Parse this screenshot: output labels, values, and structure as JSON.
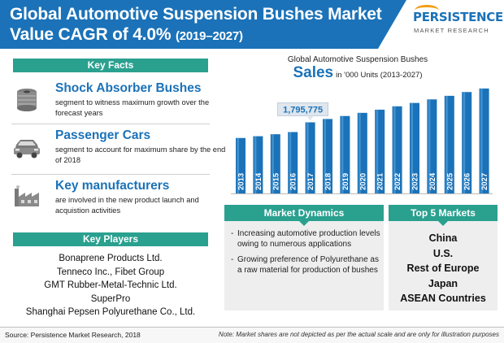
{
  "header": {
    "title_line1": "Global Automotive Suspension Bushes Market",
    "title_line2": "Value CAGR of 4.0%",
    "title_years": "(2019–2027)",
    "logo_word": "PERSISTENCE",
    "logo_sub": "MARKET RESEARCH",
    "brand_color": "#1b72b8",
    "accent_color": "#2aa08f"
  },
  "key_facts": {
    "heading": "Key Facts",
    "items": [
      {
        "icon": "shock-absorber-icon",
        "title": "Shock Absorber Bushes",
        "text": "segment to witness maximum growth over the forecast years"
      },
      {
        "icon": "car-icon",
        "title": "Passenger Cars",
        "text": "segment to account for maximum share by the end of 2018"
      },
      {
        "icon": "factory-icon",
        "title": "Key manufacturers",
        "text": "are involved in the new product launch and acquistion activities"
      }
    ]
  },
  "key_players": {
    "heading": "Key Players",
    "items": [
      "Bonaprene Products Ltd.",
      "Tenneco Inc., Fibet Group",
      "GMT Rubber-Metal-Technic Ltd.",
      "SuperPro",
      "Shanghai Pepsen Polyurethane Co., Ltd."
    ]
  },
  "chart_data": {
    "type": "bar",
    "title": "Global Automotive Suspension Bushes",
    "subtitle_big": "Sales",
    "subtitle": "in '000 Units (2013-2027)",
    "categories": [
      "2013",
      "2014",
      "2015",
      "2016",
      "2017",
      "2018",
      "2019",
      "2020",
      "2021",
      "2022",
      "2023",
      "2024",
      "2025",
      "2026",
      "2027"
    ],
    "values": [
      1400000,
      1445000,
      1495000,
      1550000,
      1795775,
      1880000,
      1955000,
      2035000,
      2115000,
      2200000,
      2285000,
      2375000,
      2465000,
      2560000,
      2650000
    ],
    "annotation": {
      "category": "2017",
      "label": "1,795,775"
    },
    "ylim": [
      0,
      2750000
    ],
    "bar_color": "#1b72b8"
  },
  "market_dynamics": {
    "heading": "Market Dynamics",
    "items": [
      "Increasing automotive production levels owing to numerous applications",
      "Growing preference of Polyurethane as a raw material for production of bushes"
    ]
  },
  "top_markets": {
    "heading": "Top 5 Markets",
    "items": [
      "China",
      "U.S.",
      "Rest of Europe",
      "Japan",
      "ASEAN Countries"
    ]
  },
  "footer": {
    "source": "Source: Persistence Market Research, 2018",
    "note": "Note: Market shares are not depicted as per the actual scale and are only for illustration purposes"
  }
}
